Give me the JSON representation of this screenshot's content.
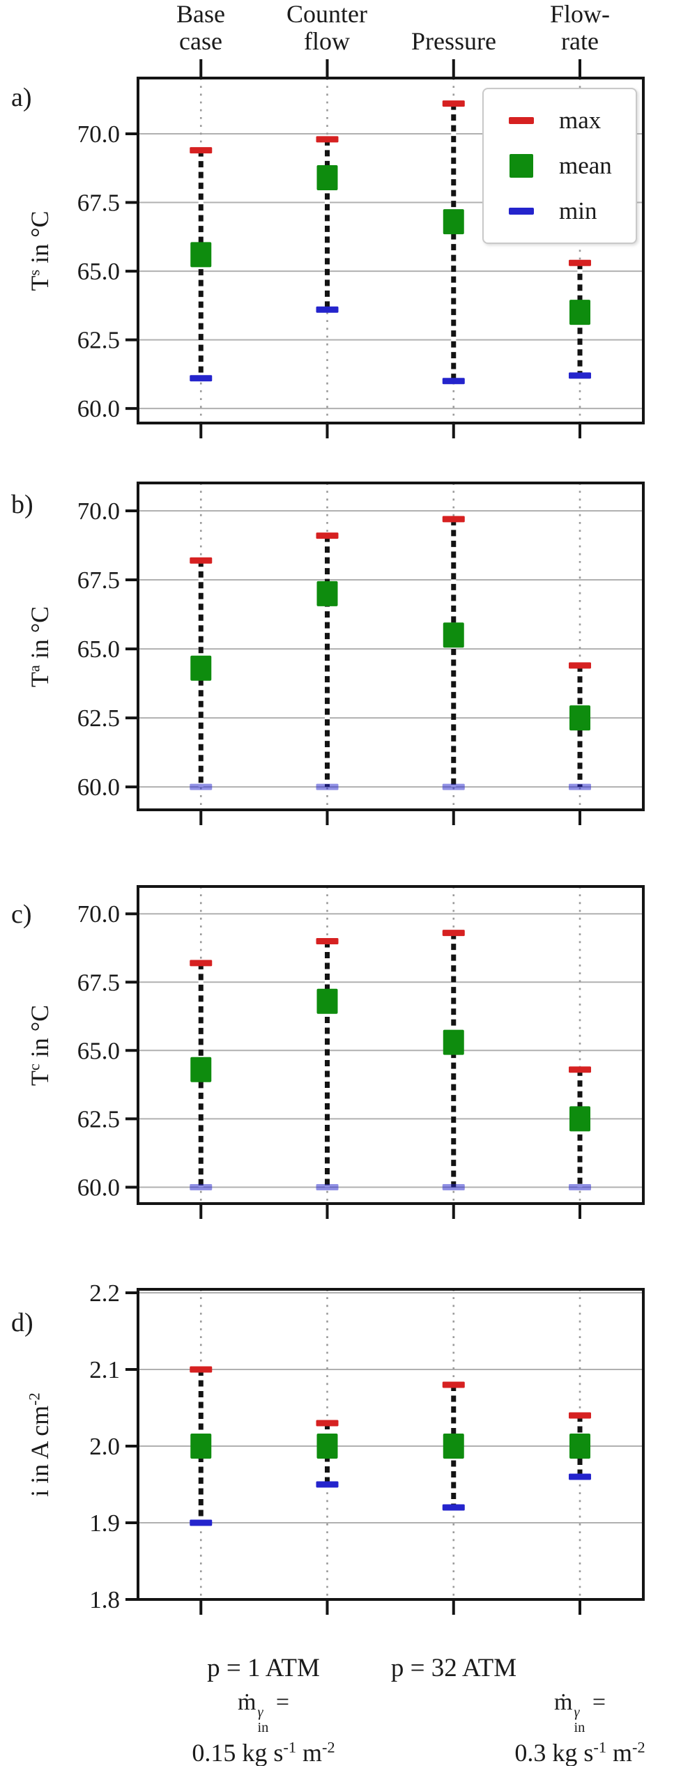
{
  "figure": {
    "columns": [
      "Base\ncase",
      "Counter\nflow",
      "Pressure",
      "Flow-\nrate"
    ]
  },
  "legend": {
    "items": [
      {
        "label": "max",
        "shape": "dash",
        "color": "#d62121"
      },
      {
        "label": "mean",
        "shape": "square",
        "color": "#0e8c0e"
      },
      {
        "label": "min",
        "shape": "dash",
        "color": "#2424cc"
      }
    ]
  },
  "chart_data": [
    {
      "id": "a",
      "type": "errorbar",
      "panel_label": "a)",
      "ylabel": {
        "base": "T",
        "sup": "s",
        "rest": " in °C"
      },
      "categories": [
        "Base case",
        "Counter flow",
        "Pressure",
        "Flow-rate"
      ],
      "yticks": [
        70.0,
        67.5,
        65.0,
        62.5,
        60.0
      ],
      "ylim": [
        59.47,
        72.03
      ],
      "series": {
        "max": [
          69.4,
          69.8,
          71.1,
          65.3
        ],
        "mean": [
          65.6,
          68.4,
          66.8,
          63.5
        ],
        "min": [
          61.1,
          63.6,
          61.0,
          61.2
        ]
      },
      "min_opacity": 1,
      "grid": true,
      "legend_position": "upper right"
    },
    {
      "id": "b",
      "type": "errorbar",
      "panel_label": "b)",
      "ylabel": {
        "base": "T",
        "sup": "a",
        "rest": " in °C"
      },
      "categories": [
        "Base case",
        "Counter flow",
        "Pressure",
        "Flow-rate"
      ],
      "yticks": [
        70.0,
        67.5,
        65.0,
        62.5,
        60.0
      ],
      "ylim": [
        59.17,
        71.01
      ],
      "series": {
        "max": [
          68.2,
          69.1,
          69.7,
          64.4
        ],
        "mean": [
          64.3,
          67.0,
          65.5,
          62.5
        ],
        "min": [
          60.0,
          60.0,
          60.0,
          60.0
        ]
      },
      "min_opacity": 0.5,
      "grid": true
    },
    {
      "id": "c",
      "type": "errorbar",
      "panel_label": "c)",
      "ylabel": {
        "base": "T",
        "sup": "c",
        "rest": " in °C"
      },
      "categories": [
        "Base case",
        "Counter flow",
        "Pressure",
        "Flow-rate"
      ],
      "yticks": [
        70.0,
        67.5,
        65.0,
        62.5,
        60.0
      ],
      "ylim": [
        59.4,
        71.0
      ],
      "series": {
        "max": [
          68.2,
          69.0,
          69.3,
          64.3
        ],
        "mean": [
          64.3,
          66.8,
          65.3,
          62.5
        ],
        "min": [
          60.0,
          60.0,
          60.0,
          60.0
        ]
      },
      "min_opacity": 0.5,
      "grid": true
    },
    {
      "id": "d",
      "type": "errorbar",
      "panel_label": "d)",
      "ylabel": {
        "base": "i in A cm",
        "sup": "-2",
        "rest": ""
      },
      "categories": [
        "Base case",
        "Counter flow",
        "Pressure",
        "Flow-rate"
      ],
      "yticks": [
        2.2,
        2.1,
        2.0,
        1.9,
        1.8
      ],
      "ylim": [
        1.8,
        2.2045
      ],
      "series": {
        "max": [
          2.1,
          2.03,
          2.08,
          2.04
        ],
        "mean": [
          2.0,
          2.0,
          2.0,
          2.0
        ],
        "min": [
          1.9,
          1.95,
          1.92,
          1.96
        ]
      },
      "min_opacity": 1,
      "grid": true
    }
  ],
  "bottom_labels": {
    "pressure_left": "p = 1 ATM",
    "pressure_right": "p = 32 ATM",
    "flow_left": {
      "mdot_base": "ṁ",
      "mdot_sup": "γ",
      "mdot_sub": "in",
      "eq": " =",
      "value": "0.15 kg s",
      "sup1": "-1",
      "mid": " m",
      "sup2": "-2"
    },
    "flow_right": {
      "mdot_base": "ṁ",
      "mdot_sup": "γ",
      "mdot_sub": "in",
      "eq": " =",
      "value": "0.3 kg s",
      "sup1": "-1",
      "mid": " m",
      "sup2": "-2"
    }
  }
}
